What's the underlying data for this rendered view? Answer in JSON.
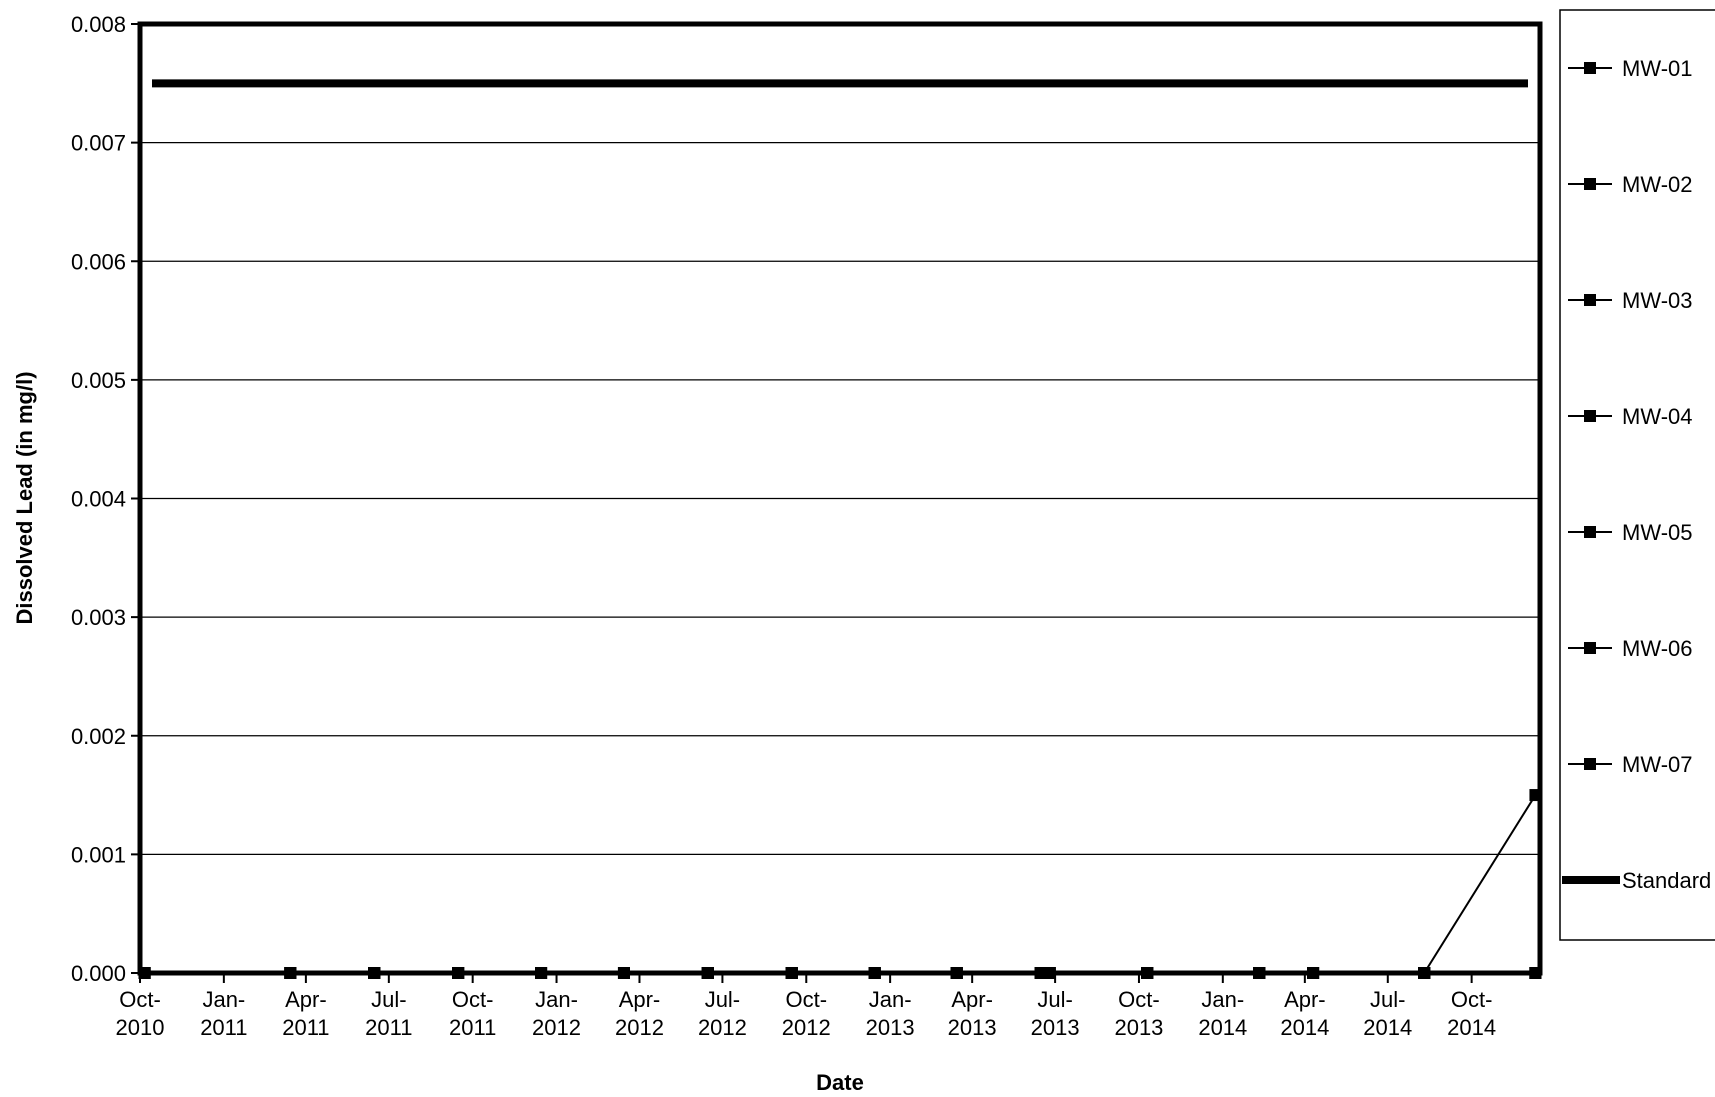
{
  "chart_data": {
    "type": "line",
    "title": "",
    "xlabel": "Date",
    "ylabel": "Dissolved Lead (in mg/l)",
    "ylim": [
      0,
      0.008
    ],
    "xlim": [
      "2010-10-01",
      "2014-12-15"
    ],
    "grid": "horizontal",
    "legend_position": "right",
    "y_ticks": [
      "0.000",
      "0.001",
      "0.002",
      "0.003",
      "0.004",
      "0.005",
      "0.006",
      "0.007",
      "0.008"
    ],
    "x_ticks": [
      {
        "date": "2010-10-01",
        "label": [
          "Oct-",
          "2010"
        ]
      },
      {
        "date": "2011-01-01",
        "label": [
          "Jan-",
          "2011"
        ]
      },
      {
        "date": "2011-04-01",
        "label": [
          "Apr-",
          "2011"
        ]
      },
      {
        "date": "2011-07-01",
        "label": [
          "Jul-",
          "2011"
        ]
      },
      {
        "date": "2011-10-01",
        "label": [
          "Oct-",
          "2011"
        ]
      },
      {
        "date": "2012-01-01",
        "label": [
          "Jan-",
          "2012"
        ]
      },
      {
        "date": "2012-04-01",
        "label": [
          "Apr-",
          "2012"
        ]
      },
      {
        "date": "2012-07-01",
        "label": [
          "Jul-",
          "2012"
        ]
      },
      {
        "date": "2012-10-01",
        "label": [
          "Oct-",
          "2012"
        ]
      },
      {
        "date": "2013-01-01",
        "label": [
          "Jan-",
          "2013"
        ]
      },
      {
        "date": "2013-04-01",
        "label": [
          "Apr-",
          "2013"
        ]
      },
      {
        "date": "2013-07-01",
        "label": [
          "Jul-",
          "2013"
        ]
      },
      {
        "date": "2013-10-01",
        "label": [
          "Oct-",
          "2013"
        ]
      },
      {
        "date": "2014-01-01",
        "label": [
          "Jan-",
          "2014"
        ]
      },
      {
        "date": "2014-04-01",
        "label": [
          "Apr-",
          "2014"
        ]
      },
      {
        "date": "2014-07-01",
        "label": [
          "Jul-",
          "2014"
        ]
      },
      {
        "date": "2014-10-01",
        "label": [
          "Oct-",
          "2014"
        ]
      }
    ],
    "sample_dates": [
      "2010-10-06",
      "2011-03-15",
      "2011-06-15",
      "2011-09-15",
      "2011-12-15",
      "2012-03-15",
      "2012-06-15",
      "2012-09-15",
      "2012-12-15",
      "2013-03-15",
      "2013-06-15",
      "2013-06-25",
      "2013-10-10",
      "2014-02-10",
      "2014-04-10",
      "2014-08-10",
      "2014-12-10"
    ],
    "series": [
      {
        "name": "MW-01",
        "values": [
          0,
          0,
          0,
          0,
          0,
          0,
          0,
          0,
          0,
          0,
          0,
          0,
          0,
          0,
          0,
          0,
          0
        ]
      },
      {
        "name": "MW-02",
        "values": [
          0,
          0,
          0,
          0,
          0,
          0,
          0,
          0,
          0,
          0,
          0,
          0,
          0,
          0,
          0,
          0,
          0
        ]
      },
      {
        "name": "MW-03",
        "values": [
          0,
          0,
          0,
          0,
          0,
          0,
          0,
          0,
          0,
          0,
          0,
          0,
          0,
          0,
          0,
          0,
          0
        ]
      },
      {
        "name": "MW-04",
        "values": [
          0,
          0,
          0,
          0,
          0,
          0,
          0,
          0,
          0,
          0,
          0,
          0,
          0,
          0,
          0,
          0,
          0
        ]
      },
      {
        "name": "MW-05",
        "values": [
          0,
          0,
          0,
          0,
          0,
          0,
          0,
          0,
          0,
          0,
          0,
          0,
          0,
          0,
          0,
          0,
          0
        ]
      },
      {
        "name": "MW-06",
        "values": [
          0,
          0,
          0,
          0,
          0,
          0,
          0,
          0,
          0,
          0,
          0,
          0,
          0,
          0,
          0,
          0,
          0
        ]
      },
      {
        "name": "MW-07",
        "values": [
          0,
          0,
          0,
          0,
          0,
          0,
          0,
          0,
          0,
          0,
          0,
          0,
          0,
          0,
          0,
          0,
          0.0015
        ]
      }
    ],
    "standard": {
      "name": "Standard",
      "value": 0.0075
    },
    "colors": {
      "line": "#000000",
      "grid": "#000000",
      "background": "#ffffff"
    }
  }
}
